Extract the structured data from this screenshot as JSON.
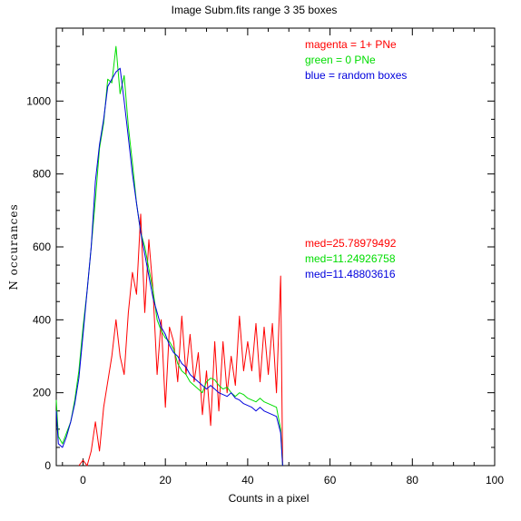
{
  "chart_data": {
    "type": "line",
    "title": "Image Subm.fits   range 3    35 boxes",
    "xlabel": "Counts in a pixel",
    "ylabel": "N occurances",
    "xlim": [
      -6.5,
      100
    ],
    "ylim": [
      0,
      1200
    ],
    "x_ticks": [
      0,
      20,
      40,
      60,
      80,
      100
    ],
    "y_ticks": [
      0,
      200,
      400,
      600,
      800,
      1000
    ],
    "x_ticklabels": [
      "0",
      "20",
      "40",
      "60",
      "80",
      "100"
    ],
    "y_ticklabels": [
      "0",
      "200",
      "400",
      "600",
      "800",
      "1000"
    ],
    "grid": false,
    "legend": [
      {
        "text": "magenta = 1+ PNe",
        "color": "#ff0000"
      },
      {
        "text": "green = 0 PNe",
        "color": "#00dd00"
      },
      {
        "text": "blue = random boxes",
        "color": "#0000dd"
      }
    ],
    "medians": [
      {
        "text": "med=25.78979492",
        "color": "#ff0000"
      },
      {
        "text": "med=11.24926758",
        "color": "#00dd00"
      },
      {
        "text": "med=11.48803616",
        "color": "#0000dd"
      }
    ],
    "series": [
      {
        "color": "#ff0000",
        "x": [
          -1,
          0,
          1,
          2,
          3,
          4,
          5,
          6,
          7,
          8,
          9,
          10,
          11,
          12,
          13,
          14,
          15,
          16,
          17,
          18,
          19,
          20,
          21,
          22,
          23,
          24,
          25,
          26,
          27,
          28,
          29,
          30,
          31,
          32,
          33,
          34,
          35,
          36,
          37,
          38,
          39,
          40,
          41,
          42,
          43,
          44,
          45,
          46,
          47,
          48,
          48.5
        ],
        "y": [
          0,
          15,
          0,
          40,
          120,
          40,
          160,
          230,
          300,
          400,
          300,
          250,
          420,
          530,
          470,
          690,
          420,
          620,
          480,
          250,
          400,
          160,
          380,
          340,
          230,
          410,
          250,
          360,
          230,
          310,
          140,
          260,
          110,
          340,
          150,
          340,
          200,
          300,
          220,
          410,
          260,
          340,
          260,
          390,
          230,
          380,
          250,
          390,
          200,
          520,
          0
        ]
      },
      {
        "color": "#00dd00",
        "x": [
          -6.5,
          -6,
          -5,
          -4,
          -3,
          -2,
          -1,
          0,
          1,
          2,
          3,
          4,
          5,
          6,
          7,
          8,
          9,
          10,
          11,
          12,
          13,
          14,
          15,
          16,
          17,
          18,
          19,
          20,
          21,
          22,
          23,
          24,
          25,
          26,
          27,
          28,
          29,
          30,
          31,
          32,
          33,
          34,
          35,
          36,
          37,
          38,
          39,
          40,
          41,
          42,
          43,
          44,
          45,
          46,
          47,
          48,
          48.5
        ],
        "y": [
          180,
          80,
          60,
          90,
          120,
          180,
          260,
          380,
          480,
          600,
          730,
          870,
          940,
          1060,
          1050,
          1150,
          1020,
          1070,
          930,
          830,
          720,
          640,
          600,
          540,
          480,
          400,
          370,
          350,
          340,
          320,
          280,
          260,
          250,
          230,
          220,
          210,
          200,
          230,
          240,
          235,
          220,
          210,
          215,
          200,
          190,
          200,
          195,
          185,
          180,
          175,
          185,
          175,
          170,
          165,
          160,
          100,
          0
        ]
      },
      {
        "color": "#0000dd",
        "x": [
          -6.5,
          -6,
          -5,
          -4,
          -3,
          -2,
          -1,
          0,
          1,
          2,
          3,
          4,
          5,
          6,
          7,
          8,
          9,
          10,
          11,
          12,
          13,
          14,
          15,
          16,
          17,
          18,
          19,
          20,
          21,
          22,
          23,
          24,
          25,
          26,
          27,
          28,
          29,
          30,
          31,
          32,
          33,
          34,
          35,
          36,
          37,
          38,
          39,
          40,
          41,
          42,
          43,
          44,
          45,
          46,
          47,
          48,
          48.5
        ],
        "y": [
          150,
          60,
          50,
          80,
          120,
          170,
          240,
          360,
          480,
          600,
          780,
          880,
          950,
          1040,
          1060,
          1080,
          1090,
          1000,
          900,
          800,
          720,
          640,
          580,
          520,
          460,
          420,
          380,
          360,
          330,
          310,
          300,
          280,
          270,
          250,
          240,
          230,
          220,
          210,
          220,
          210,
          200,
          195,
          190,
          200,
          185,
          180,
          170,
          165,
          160,
          150,
          160,
          150,
          145,
          140,
          135,
          90,
          0
        ]
      }
    ]
  }
}
